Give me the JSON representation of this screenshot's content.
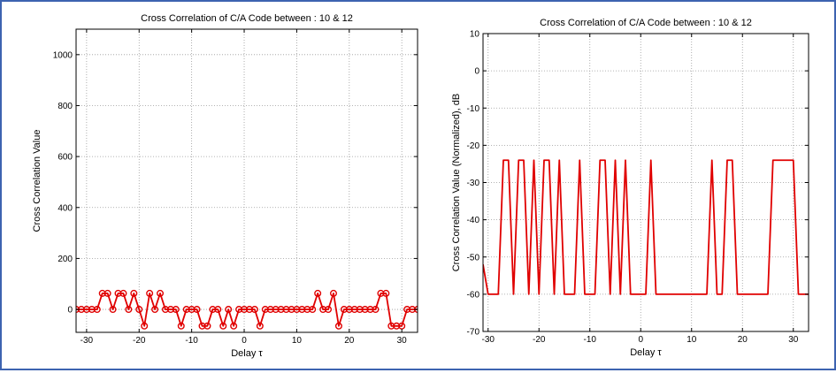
{
  "colors": {
    "frame": "#3d63b0",
    "series": "#e00000",
    "axis": "#000000",
    "grid": "#9a9a9a"
  },
  "chart_data": [
    {
      "type": "line",
      "markers": "circle",
      "title": "Cross Correlation of C/A Code between : 10 & 12",
      "xlabel": "Delay τ",
      "ylabel": "Cross Correlation Value",
      "xlim": [
        -32,
        33
      ],
      "ylim": [
        -90,
        1100
      ],
      "xticks": [
        -30,
        -20,
        -10,
        0,
        10,
        20,
        30
      ],
      "yticks": [
        0,
        200,
        400,
        600,
        800,
        1000
      ],
      "grid": true,
      "x": [
        -32,
        -31,
        -30,
        -29,
        -28,
        -27,
        -26,
        -25,
        -24,
        -23,
        -22,
        -21,
        -20,
        -19,
        -18,
        -17,
        -16,
        -15,
        -14,
        -13,
        -12,
        -11,
        -10,
        -9,
        -8,
        -7,
        -6,
        -5,
        -4,
        -3,
        -2,
        -1,
        0,
        1,
        2,
        3,
        4,
        5,
        6,
        7,
        8,
        9,
        10,
        11,
        12,
        13,
        14,
        15,
        16,
        17,
        18,
        19,
        20,
        21,
        22,
        23,
        24,
        25,
        26,
        27,
        28,
        29,
        30,
        31,
        32,
        33
      ],
      "y": [
        0,
        0,
        0,
        0,
        0,
        63,
        63,
        0,
        63,
        63,
        0,
        63,
        0,
        -65,
        63,
        0,
        63,
        0,
        0,
        0,
        -65,
        0,
        0,
        0,
        -65,
        -65,
        0,
        0,
        -65,
        0,
        -65,
        0,
        0,
        0,
        0,
        -65,
        0,
        0,
        0,
        0,
        0,
        0,
        0,
        0,
        0,
        0,
        63,
        0,
        0,
        63,
        -65,
        0,
        0,
        0,
        0,
        0,
        0,
        0,
        63,
        63,
        -65,
        -65,
        -65,
        0,
        0,
        0
      ]
    },
    {
      "type": "line",
      "title": "Cross Correlation of C/A Code between : 10 & 12",
      "xlabel": "Delay τ",
      "ylabel": "Cross Correlation Value (Normalized), dB",
      "xlim": [
        -31,
        33
      ],
      "ylim": [
        -70,
        10
      ],
      "xticks": [
        -30,
        -20,
        -10,
        0,
        10,
        20,
        30
      ],
      "yticks": [
        10,
        0,
        -10,
        -20,
        -30,
        -40,
        -50,
        -60,
        -70
      ],
      "grid": true,
      "x": [
        -31,
        -30,
        -29,
        -28,
        -27,
        -26,
        -25,
        -24,
        -23,
        -22,
        -21,
        -20,
        -19,
        -18,
        -17,
        -16,
        -15,
        -14,
        -13,
        -12,
        -11,
        -10,
        -9,
        -8,
        -7,
        -6,
        -5,
        -4,
        -3,
        -2,
        -1,
        0,
        1,
        2,
        3,
        4,
        5,
        6,
        7,
        8,
        9,
        10,
        11,
        12,
        13,
        14,
        15,
        16,
        17,
        18,
        19,
        20,
        21,
        22,
        23,
        24,
        25,
        26,
        27,
        28,
        29,
        30,
        31,
        32,
        33
      ],
      "y": [
        -52,
        -60,
        -60,
        -60,
        -24,
        -24,
        -60,
        -24,
        -24,
        -60,
        -24,
        -60,
        -24,
        -24,
        -60,
        -24,
        -60,
        -60,
        -60,
        -24,
        -60,
        -60,
        -60,
        -24,
        -24,
        -60,
        -24,
        -60,
        -24,
        -60,
        -60,
        -60,
        -60,
        -24,
        -60,
        -60,
        -60,
        -60,
        -60,
        -60,
        -60,
        -60,
        -60,
        -60,
        -60,
        -24,
        -60,
        -60,
        -24,
        -24,
        -60,
        -60,
        -60,
        -60,
        -60,
        -60,
        -60,
        -24,
        -24,
        -24,
        -24,
        -24,
        -60,
        -60,
        -60
      ]
    }
  ]
}
